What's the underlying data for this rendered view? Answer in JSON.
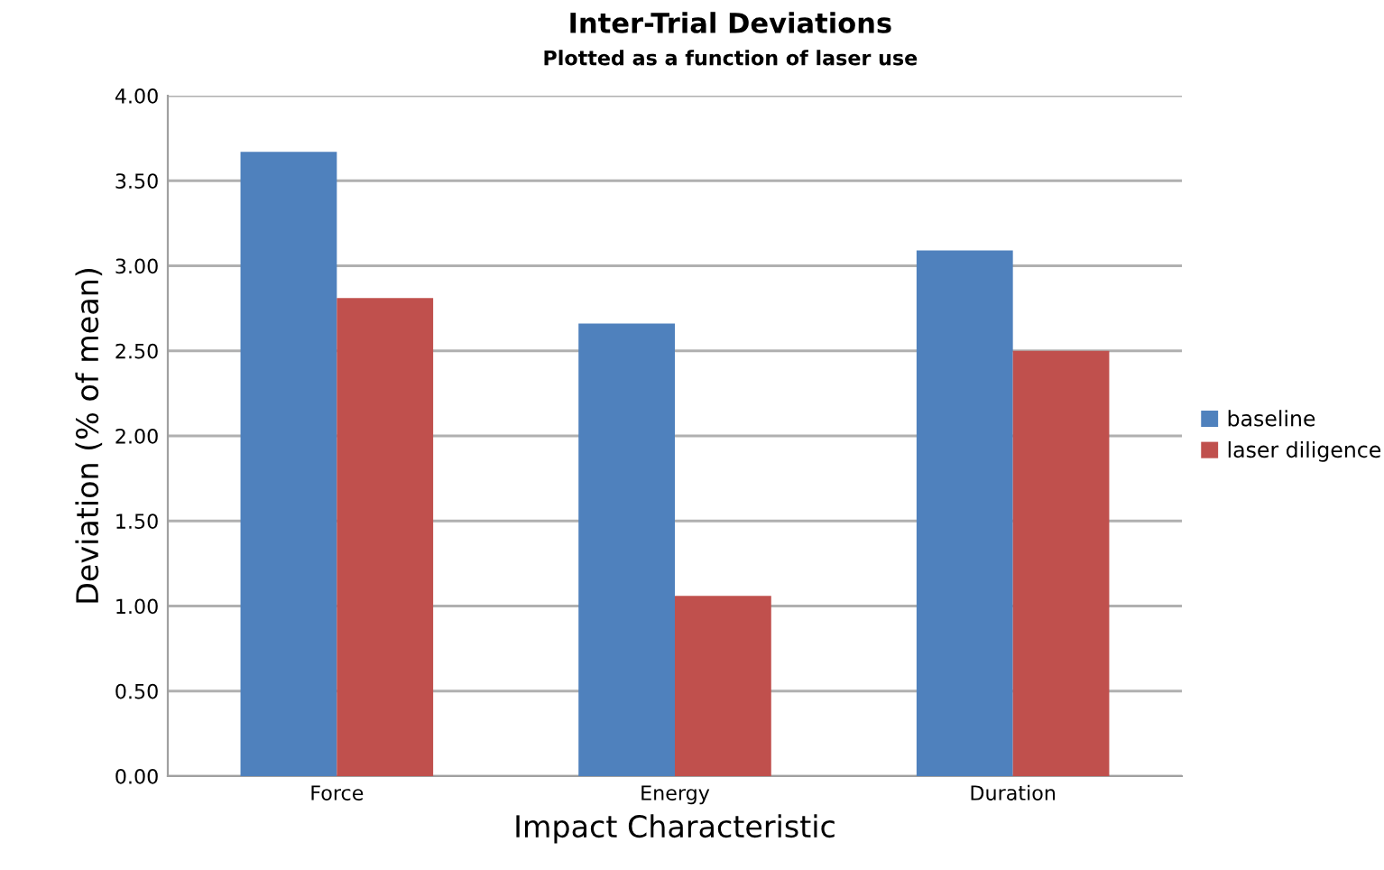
{
  "chart_data": {
    "type": "bar",
    "title": "Inter-Trial Deviations",
    "subtitle": "Plotted as a function of laser use",
    "xlabel": "Impact Characteristic",
    "ylabel": "Deviation (% of mean)",
    "categories": [
      "Force",
      "Energy",
      "Duration"
    ],
    "series": [
      {
        "name": "baseline",
        "color": "#4f81bd",
        "values": [
          3.67,
          2.66,
          3.09
        ]
      },
      {
        "name": "laser diligence",
        "color": "#c0504d",
        "values": [
          2.81,
          1.06,
          2.5
        ]
      }
    ],
    "ylim": [
      0,
      4
    ],
    "yticks": [
      {
        "value": 0,
        "label": "0.00"
      },
      {
        "value": 0.5,
        "label": "0.50"
      },
      {
        "value": 1,
        "label": "1.00"
      },
      {
        "value": 1.5,
        "label": "1.50"
      },
      {
        "value": 2,
        "label": "2.00"
      },
      {
        "value": 2.5,
        "label": "2.50"
      },
      {
        "value": 3,
        "label": "3.00"
      },
      {
        "value": 3.5,
        "label": "3.50"
      },
      {
        "value": 4,
        "label": "4.00"
      }
    ],
    "grid": "y",
    "legend": "right"
  }
}
